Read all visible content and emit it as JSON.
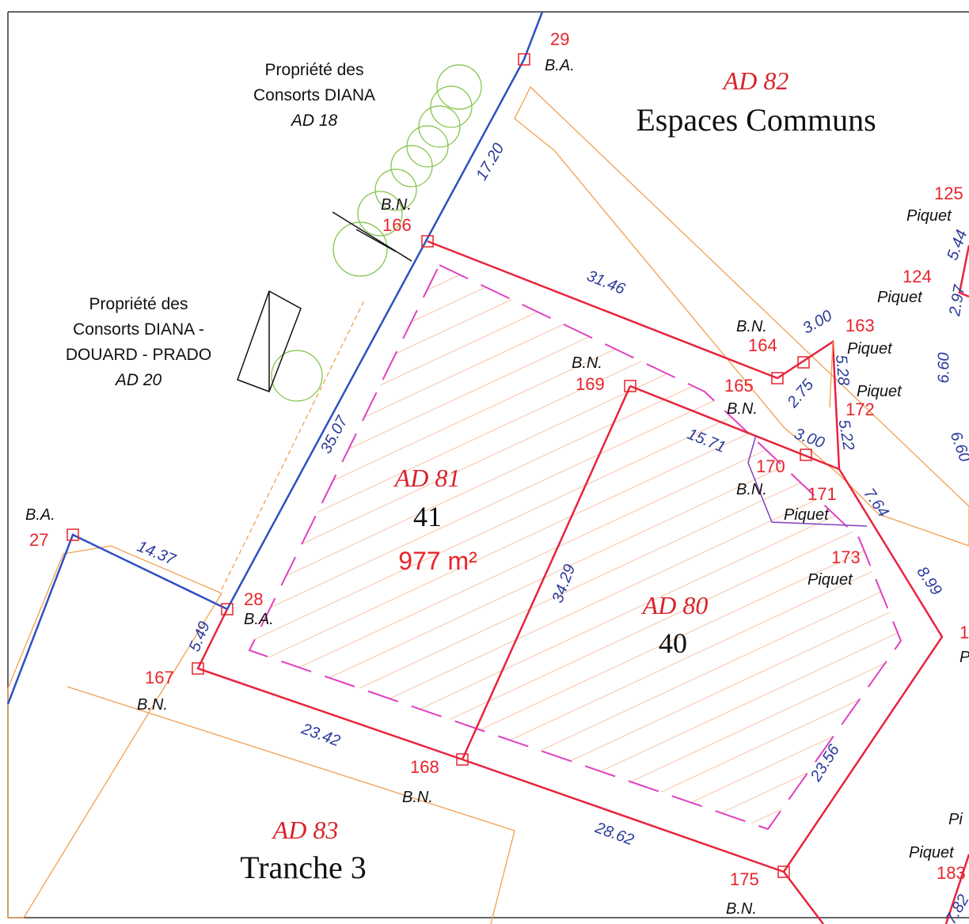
{
  "map": {
    "parcels": [
      {
        "id": "AD 82",
        "name": "Espaces Communs"
      },
      {
        "id": "AD 81",
        "number": "41",
        "area": "977 m²"
      },
      {
        "id": "AD 80",
        "number": "40"
      },
      {
        "id": "AD 83",
        "name": "Tranche 3"
      }
    ],
    "neighbours": [
      {
        "lines": [
          "Propriété des",
          "Consorts DIANA"
        ],
        "id": "AD 18"
      },
      {
        "lines": [
          "Propriété des",
          "Consorts DIANA -",
          "DOUARD - PRADO"
        ],
        "id": "AD 20"
      }
    ],
    "points": [
      {
        "number": "29",
        "type": "B.A."
      },
      {
        "number": "125",
        "type": "Piquet"
      },
      {
        "number": "124",
        "type": "Piquet"
      },
      {
        "number": "166",
        "type": "B.N."
      },
      {
        "number": "163",
        "type": "Piquet"
      },
      {
        "number": "164",
        "type": "B.N."
      },
      {
        "number": "165",
        "type": "B.N."
      },
      {
        "number": "172",
        "type": "Piquet"
      },
      {
        "number": "169",
        "type": "B.N."
      },
      {
        "number": "170",
        "type": "B.N."
      },
      {
        "number": "171",
        "type": "Piquet"
      },
      {
        "number": "173",
        "type": "Piquet"
      },
      {
        "number": "27",
        "type": "B.A."
      },
      {
        "number": "28",
        "type": "B.A."
      },
      {
        "number": "167",
        "type": "B.N."
      },
      {
        "number": "168",
        "type": "B.N."
      },
      {
        "number": "175",
        "type": "B.N."
      },
      {
        "number": "183",
        "type": "Piquet"
      },
      {
        "number": "1",
        "type": "P"
      },
      {
        "type": "Pi"
      }
    ],
    "distances": [
      "17.20",
      "31.46",
      "3.00",
      "2.75",
      "5.28",
      "5.22",
      "3.00",
      "15.71",
      "7.64",
      "8.99",
      "35.07",
      "14.37",
      "5.49",
      "34.29",
      "23.42",
      "28.62",
      "23.56",
      "5.44",
      "2.97",
      "6.60",
      "6.60",
      "7.82"
    ]
  }
}
